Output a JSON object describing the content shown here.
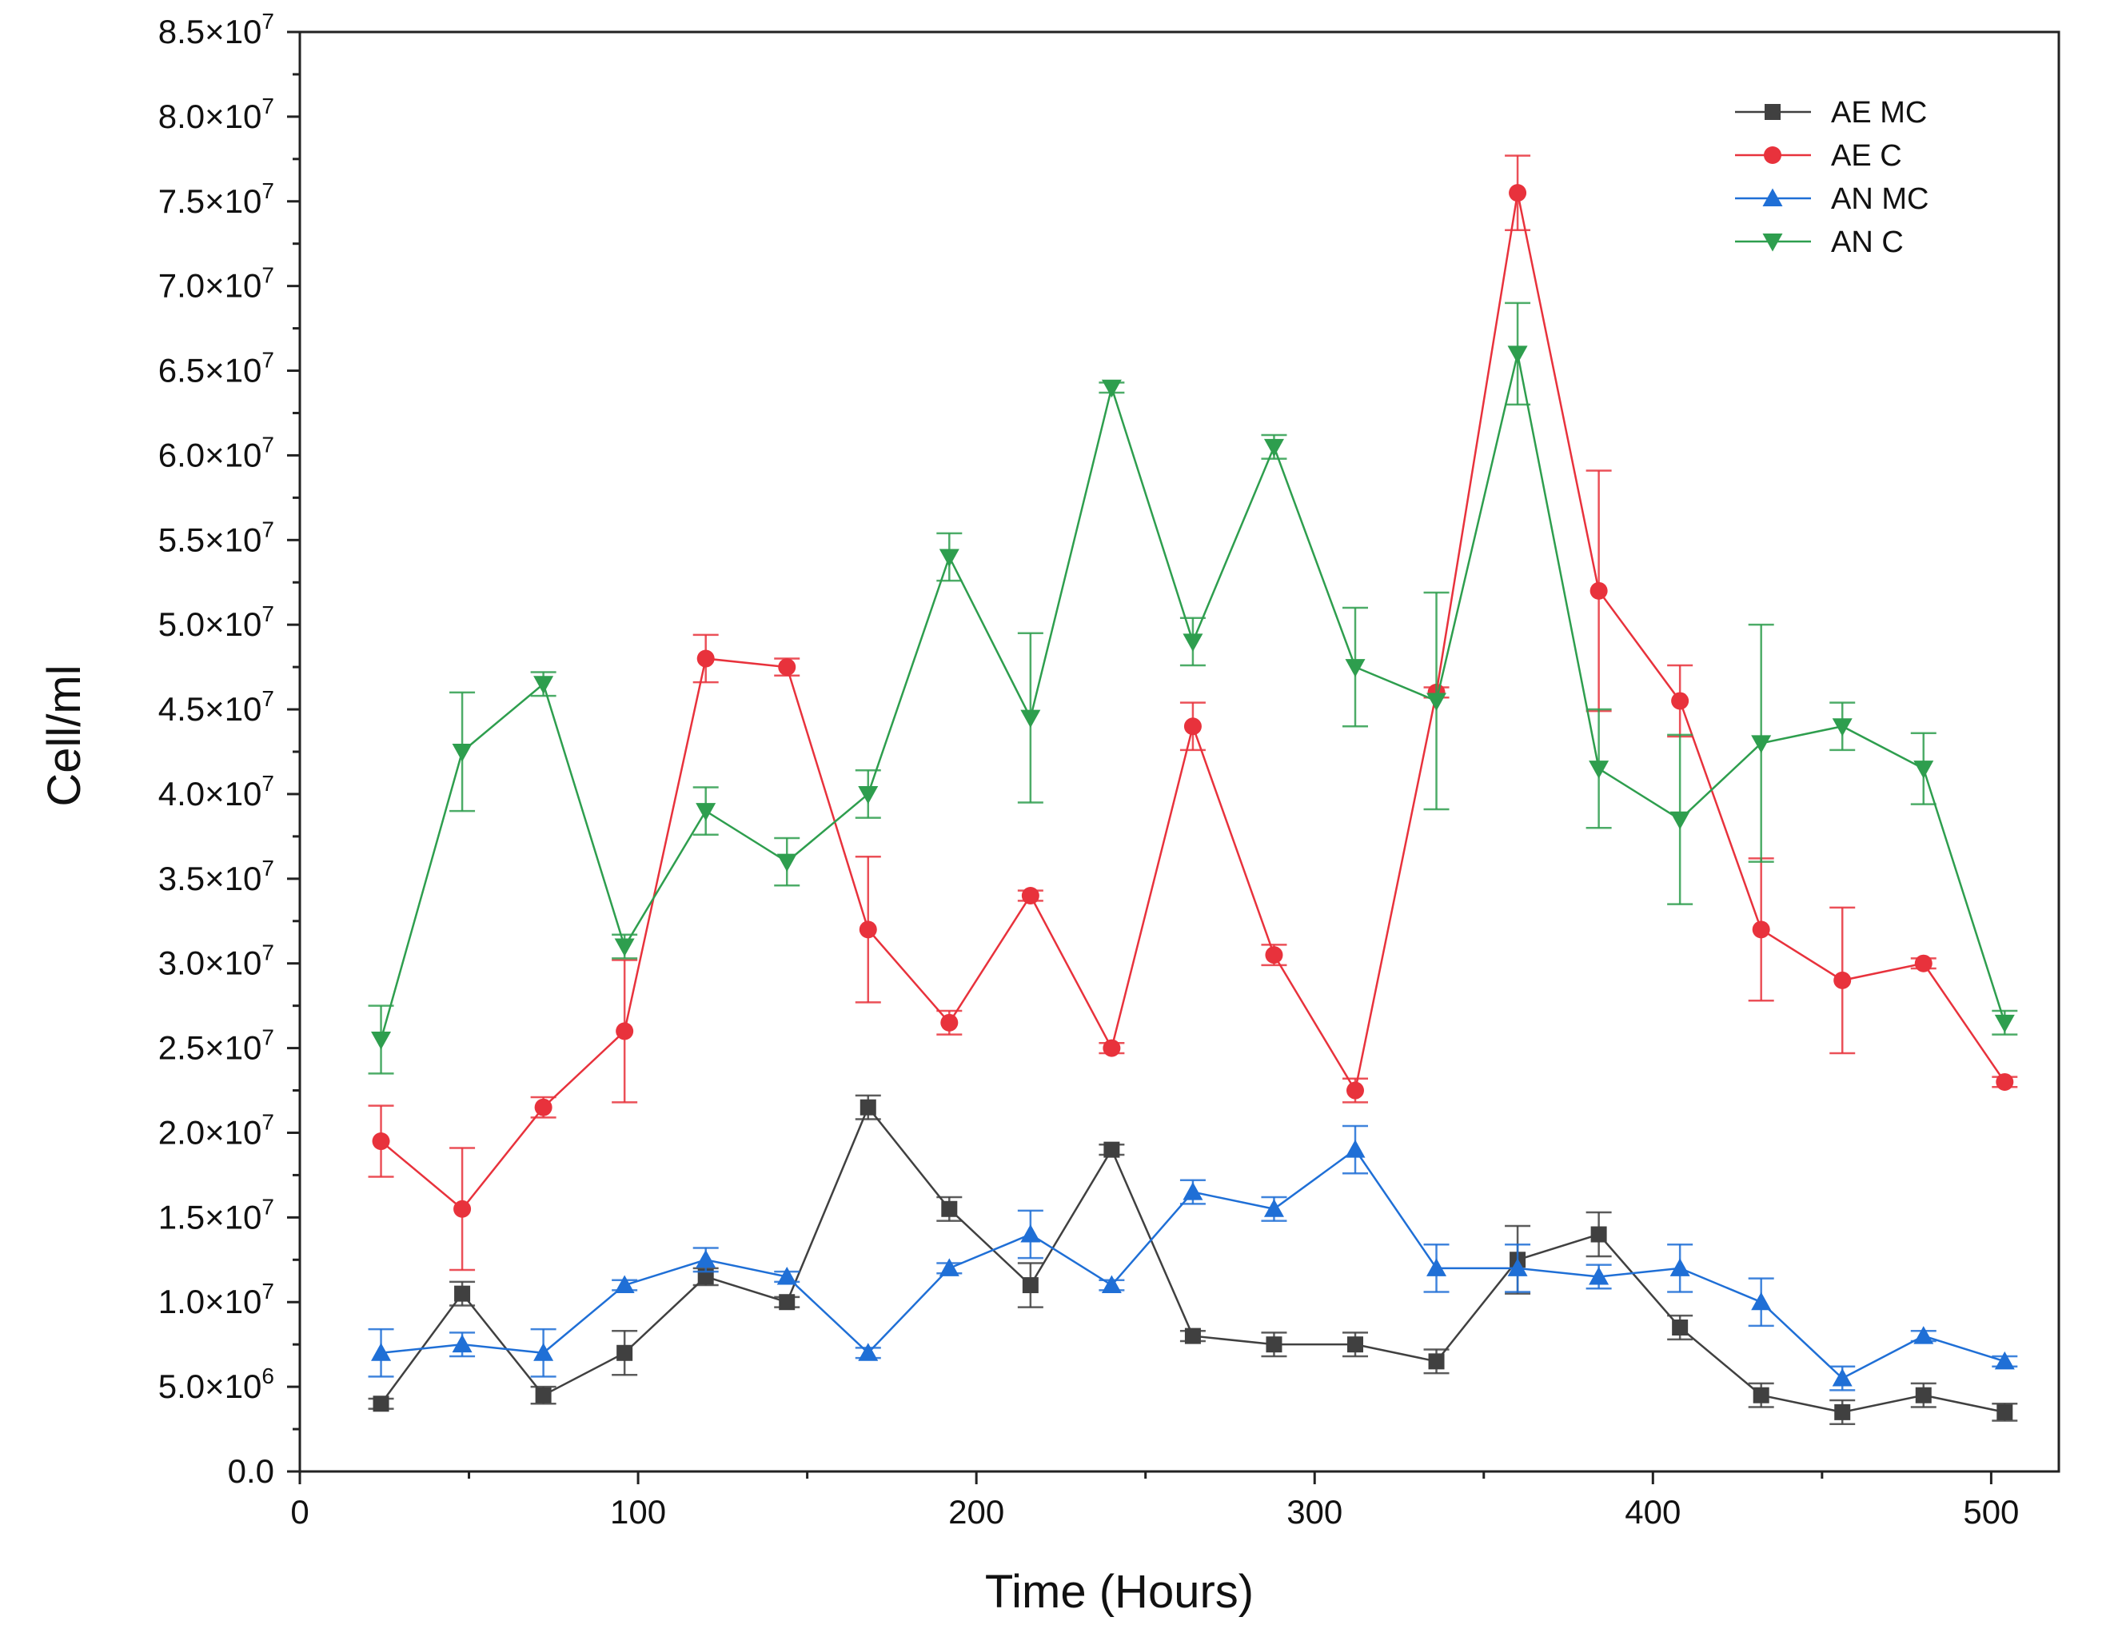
{
  "chart_data": {
    "type": "line",
    "title": "",
    "xlabel": "Time (Hours)",
    "ylabel": "Cell/ml",
    "xlim": [
      0,
      520
    ],
    "ylim": [
      0,
      85000000
    ],
    "x_ticks": [
      0,
      100,
      200,
      300,
      400,
      500
    ],
    "x_tick_labels": [
      "0",
      "100",
      "200",
      "300",
      "400",
      "500"
    ],
    "y_ticks": [
      0,
      5000000,
      10000000,
      15000000,
      20000000,
      25000000,
      30000000,
      35000000,
      40000000,
      45000000,
      50000000,
      55000000,
      60000000,
      65000000,
      70000000,
      75000000,
      80000000,
      85000000
    ],
    "y_tick_labels": [
      {
        "mantissa": "0.0",
        "exp": ""
      },
      {
        "mantissa": "5.0×10",
        "exp": "6"
      },
      {
        "mantissa": "1.0×10",
        "exp": "7"
      },
      {
        "mantissa": "1.5×10",
        "exp": "7"
      },
      {
        "mantissa": "2.0×10",
        "exp": "7"
      },
      {
        "mantissa": "2.5×10",
        "exp": "7"
      },
      {
        "mantissa": "3.0×10",
        "exp": "7"
      },
      {
        "mantissa": "3.5×10",
        "exp": "7"
      },
      {
        "mantissa": "4.0×10",
        "exp": "7"
      },
      {
        "mantissa": "4.5×10",
        "exp": "7"
      },
      {
        "mantissa": "5.0×10",
        "exp": "7"
      },
      {
        "mantissa": "5.5×10",
        "exp": "7"
      },
      {
        "mantissa": "6.0×10",
        "exp": "7"
      },
      {
        "mantissa": "6.5×10",
        "exp": "7"
      },
      {
        "mantissa": "7.0×10",
        "exp": "7"
      },
      {
        "mantissa": "7.5×10",
        "exp": "7"
      },
      {
        "mantissa": "8.0×10",
        "exp": "7"
      },
      {
        "mantissa": "8.5×10",
        "exp": "7"
      }
    ],
    "grid": false,
    "legend_position": "top-right",
    "x": [
      24,
      48,
      72,
      96,
      120,
      144,
      168,
      192,
      216,
      240,
      264,
      288,
      312,
      336,
      360,
      384,
      408,
      432,
      456,
      480,
      504
    ],
    "series": [
      {
        "name": "AE MC",
        "color": "#404040",
        "marker": "square",
        "values": [
          4000000,
          10500000,
          4500000,
          7000000,
          11500000,
          10000000,
          21500000,
          15500000,
          11000000,
          19000000,
          8000000,
          7500000,
          7500000,
          6500000,
          12500000,
          14000000,
          8500000,
          4500000,
          3500000,
          4500000,
          3500000
        ],
        "errors": [
          300000,
          700000,
          500000,
          1300000,
          500000,
          300000,
          700000,
          700000,
          1300000,
          300000,
          300000,
          700000,
          700000,
          700000,
          2000000,
          1300000,
          700000,
          700000,
          700000,
          700000,
          500000
        ]
      },
      {
        "name": "AE C",
        "color": "#e8323c",
        "marker": "circle",
        "values": [
          19500000,
          15500000,
          21500000,
          26000000,
          48000000,
          47500000,
          32000000,
          26500000,
          34000000,
          25000000,
          44000000,
          30500000,
          22500000,
          46000000,
          75500000,
          52000000,
          45500000,
          32000000,
          29000000,
          30000000,
          23000000
        ],
        "errors": [
          2100000,
          3600000,
          600000,
          4200000,
          1400000,
          500000,
          4300000,
          700000,
          300000,
          300000,
          1400000,
          600000,
          700000,
          300000,
          2200000,
          7100000,
          2100000,
          4200000,
          4300000,
          300000,
          300000
        ]
      },
      {
        "name": "AN MC",
        "color": "#1f6fd6",
        "marker": "triangle-up",
        "values": [
          7000000,
          7500000,
          7000000,
          11000000,
          12500000,
          11500000,
          7000000,
          12000000,
          14000000,
          11000000,
          16500000,
          15500000,
          19000000,
          12000000,
          12000000,
          11500000,
          12000000,
          10000000,
          5500000,
          8000000,
          6500000
        ],
        "errors": [
          1400000,
          700000,
          1400000,
          300000,
          700000,
          300000,
          300000,
          300000,
          1400000,
          300000,
          700000,
          700000,
          1400000,
          1400000,
          1400000,
          700000,
          1400000,
          1400000,
          700000,
          300000,
          300000
        ]
      },
      {
        "name": "AN C",
        "color": "#2e9e4e",
        "marker": "triangle-down",
        "values": [
          25500000,
          42500000,
          46500000,
          31000000,
          39000000,
          36000000,
          40000000,
          54000000,
          44500000,
          64000000,
          49000000,
          60500000,
          47500000,
          45500000,
          66000000,
          41500000,
          38500000,
          43000000,
          44000000,
          41500000,
          26500000
        ],
        "errors": [
          2000000,
          3500000,
          700000,
          700000,
          1400000,
          1400000,
          1400000,
          1400000,
          5000000,
          300000,
          1400000,
          700000,
          3500000,
          6400000,
          3000000,
          3500000,
          5000000,
          7000000,
          1400000,
          2100000,
          700000
        ]
      }
    ]
  }
}
